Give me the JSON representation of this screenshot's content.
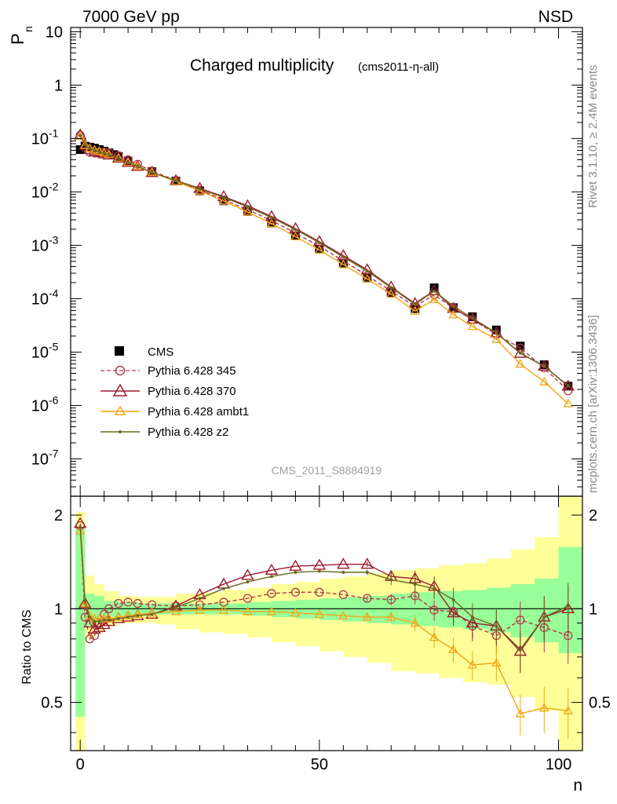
{
  "header": {
    "energy_label": "7000 GeV pp",
    "process_label": "NSD"
  },
  "side_text": {
    "rivet": "Rivet 3.1.10, ≥ 2.4M events",
    "mcplots": "mcplots.cern.ch [arXiv:1306.3436]"
  },
  "colors": {
    "cms": "#000000",
    "p345": "#b03a48",
    "p370": "#9b1b30",
    "ambt1": "#f2a516",
    "z2": "#6b6b1e",
    "band_inner": "#99ff99",
    "band_outer": "#ffff99"
  },
  "chart_data": [
    {
      "type": "scatter",
      "title": "Charged multiplicity",
      "subtitle": "(cms2011-η-all)",
      "analysis_label": "CMS_2011_S8884919",
      "ylabel": "P",
      "ylabel_sub": "n",
      "y_scale": "log",
      "ylim": [
        2e-08,
        12
      ],
      "xlim": [
        -2,
        105
      ],
      "y_ticks": [
        {
          "v": 10,
          "m": "10",
          "e": ""
        },
        {
          "v": 1,
          "m": "1",
          "e": ""
        },
        {
          "v": 0.1,
          "m": "10",
          "e": "-1"
        },
        {
          "v": 0.01,
          "m": "10",
          "e": "-2"
        },
        {
          "v": 0.001,
          "m": "10",
          "e": "-3"
        },
        {
          "v": 0.0001,
          "m": "10",
          "e": "-4"
        },
        {
          "v": 1e-05,
          "m": "10",
          "e": "-5"
        },
        {
          "v": 1e-06,
          "m": "10",
          "e": "-6"
        },
        {
          "v": 1e-07,
          "m": "10",
          "e": "-7"
        }
      ],
      "legend_position": "lower-left",
      "legend": [
        "CMS",
        "Pythia 6.428 345",
        "Pythia 6.428 370",
        "Pythia 6.428 ambt1",
        "Pythia 6.428 z2"
      ],
      "x": [
        0,
        1,
        2,
        3,
        4,
        5,
        6,
        7,
        8,
        10,
        15,
        20,
        25,
        30,
        35,
        40,
        45,
        50,
        55,
        60,
        65,
        70,
        74,
        78,
        82,
        87,
        92,
        97,
        102
      ],
      "series": [
        {
          "name": "CMS",
          "values": [
            0.062,
            0.072,
            0.069,
            0.066,
            0.062,
            0.058,
            0.054,
            0.05,
            0.046,
            0.038,
            0.024,
            0.016,
            0.0105,
            0.0068,
            0.0043,
            0.0026,
            0.0015,
            0.00085,
            0.00046,
            0.00025,
            0.00013,
            6.5e-05,
            0.00016,
            6.8e-05,
            4.6e-05,
            2.6e-05,
            1.3e-05,
            5.8e-06,
            2.3e-06
          ]
        }
      ]
    },
    {
      "type": "line",
      "ylabel": "Ratio to CMS",
      "xlabel": "n",
      "ylim": [
        0.35,
        2.3
      ],
      "xlim": [
        -2,
        105
      ],
      "x_ticks": [
        0,
        50,
        100
      ],
      "y_ticks": [
        0.5,
        1,
        2
      ],
      "x": [
        0,
        1,
        2,
        3,
        4,
        5,
        6,
        8,
        10,
        12,
        15,
        20,
        25,
        30,
        35,
        40,
        45,
        50,
        55,
        60,
        65,
        70,
        74,
        78,
        82,
        87,
        92,
        97,
        102
      ],
      "series": [
        {
          "name": "Pythia 6.428 345",
          "values": [
            1.85,
            0.94,
            0.8,
            0.82,
            0.9,
            0.96,
            1.0,
            1.04,
            1.05,
            1.04,
            1.03,
            1.02,
            1.03,
            1.05,
            1.08,
            1.12,
            1.13,
            1.13,
            1.11,
            1.08,
            1.07,
            1.1,
            0.99,
            0.98,
            0.88,
            0.82,
            0.92,
            0.87,
            0.82
          ]
        },
        {
          "name": "Pythia 6.428 370",
          "values": [
            1.88,
            1.04,
            0.9,
            0.86,
            0.87,
            0.89,
            0.91,
            0.93,
            0.94,
            0.95,
            0.96,
            1.02,
            1.11,
            1.2,
            1.28,
            1.33,
            1.37,
            1.38,
            1.39,
            1.39,
            1.27,
            1.25,
            1.18,
            0.97,
            0.9,
            0.88,
            0.73,
            0.94,
            1.0
          ]
        },
        {
          "name": "Pythia 6.428 ambt1",
          "values": [
            1.78,
            1.04,
            0.95,
            0.93,
            0.93,
            0.93,
            0.93,
            0.94,
            0.95,
            0.96,
            0.97,
            0.98,
            0.99,
            0.99,
            0.98,
            0.98,
            0.97,
            0.96,
            0.95,
            0.94,
            0.94,
            0.9,
            0.81,
            0.74,
            0.66,
            0.67,
            0.46,
            0.48,
            0.47
          ]
        },
        {
          "name": "Pythia 6.428 z2",
          "values": [
            1.83,
            1.06,
            0.94,
            0.91,
            0.91,
            0.92,
            0.92,
            0.93,
            0.94,
            0.95,
            0.96,
            1.01,
            1.08,
            1.16,
            1.22,
            1.27,
            1.31,
            1.32,
            1.31,
            1.31,
            1.24,
            1.2,
            1.16,
            1.07,
            0.94,
            0.88,
            0.74,
            0.94,
            1.02
          ]
        }
      ],
      "bands": {
        "x_edges": [
          -1,
          1,
          3,
          5,
          8,
          12,
          16,
          20,
          25,
          30,
          35,
          40,
          45,
          50,
          55,
          60,
          65,
          70,
          75,
          80,
          85,
          90,
          95,
          100,
          105
        ],
        "inner_lo": [
          0.45,
          0.88,
          0.9,
          0.94,
          0.95,
          0.96,
          0.96,
          0.96,
          0.96,
          0.96,
          0.95,
          0.94,
          0.93,
          0.92,
          0.91,
          0.9,
          0.89,
          0.88,
          0.87,
          0.86,
          0.84,
          0.81,
          0.78,
          0.72,
          0.72
        ],
        "inner_hi": [
          1.82,
          1.12,
          1.1,
          1.06,
          1.05,
          1.04,
          1.04,
          1.04,
          1.04,
          1.04,
          1.05,
          1.06,
          1.07,
          1.08,
          1.09,
          1.1,
          1.12,
          1.13,
          1.14,
          1.15,
          1.17,
          1.2,
          1.25,
          1.58,
          1.58
        ],
        "outer_lo": [
          0.35,
          0.8,
          0.84,
          0.88,
          0.9,
          0.9,
          0.89,
          0.86,
          0.84,
          0.83,
          0.81,
          0.78,
          0.76,
          0.73,
          0.7,
          0.67,
          0.63,
          0.62,
          0.6,
          0.58,
          0.57,
          0.52,
          0.47,
          0.35,
          0.35
        ],
        "outer_hi": [
          2.05,
          1.28,
          1.2,
          1.14,
          1.1,
          1.09,
          1.09,
          1.12,
          1.13,
          1.15,
          1.17,
          1.2,
          1.22,
          1.25,
          1.27,
          1.3,
          1.33,
          1.35,
          1.38,
          1.4,
          1.45,
          1.55,
          1.7,
          2.3,
          2.3
        ]
      }
    }
  ]
}
